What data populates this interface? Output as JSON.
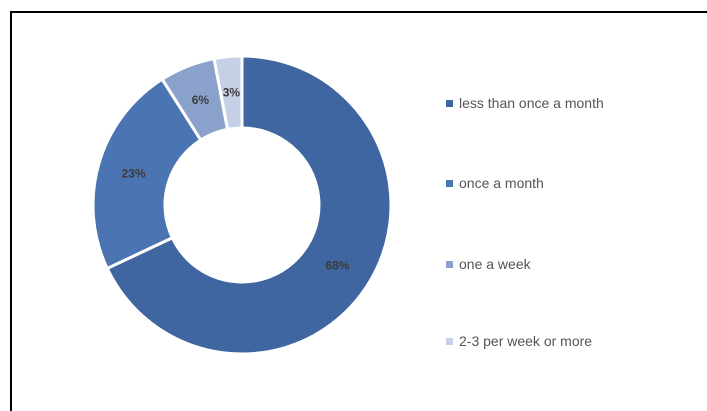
{
  "chart_data": {
    "type": "pie",
    "donut": true,
    "title": "",
    "categories": [
      "less than once a month",
      "once a month",
      "one a week",
      "2-3 per week or more"
    ],
    "values": [
      68,
      23,
      6,
      3
    ],
    "labels": [
      "68%",
      "23%",
      "6%",
      "3%"
    ],
    "colors": [
      "#3f66a0",
      "#4a74b2",
      "#8aa2cb",
      "#c5d0e6"
    ],
    "legend_position": "right"
  }
}
